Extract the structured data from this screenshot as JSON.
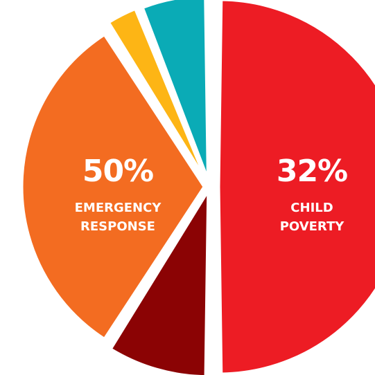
{
  "chart_data": {
    "type": "pie",
    "title": "",
    "slices": [
      {
        "value": 50,
        "color": "#ed1c24",
        "percent_label": "50%",
        "label_lines": [
          "EMERGENCY",
          "RESPONSE"
        ]
      },
      {
        "value": 9,
        "color": "#8b0304",
        "percent_label": "",
        "label_lines": []
      },
      {
        "value": 32,
        "color": "#f36c21",
        "percent_label": "32%",
        "label_lines": [
          "CHILD",
          "POVERTY"
        ]
      },
      {
        "value": 3,
        "color": "#fdb515",
        "percent_label": "",
        "label_lines": []
      },
      {
        "value": 6,
        "color": "#0aabb6",
        "percent_label": "",
        "label_lines": []
      }
    ]
  }
}
